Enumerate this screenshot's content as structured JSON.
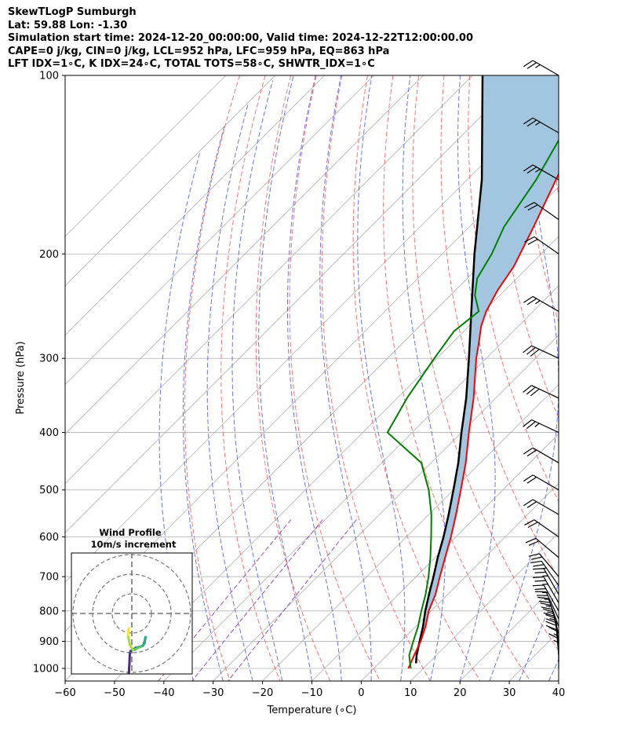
{
  "header": {
    "line1": "SkewTLogP Sumburgh",
    "line2": "Lat: 59.88   Lon: -1.30",
    "line3": "Simulation start time: 2024-12-20_00:00:00, Valid time: 2024-12-22T12:00:00.00",
    "line4": "CAPE=0 j/kg, CIN=0 j/kg, LCL=952 hPa, LFC=959 hPa, EQ=863 hPa",
    "line5": "LFT IDX=1∘C, K IDX=24∘C, TOTAL TOTS=58∘C, SHWTR_IDX=1∘C"
  },
  "chart_data": {
    "type": "line",
    "title": "SkewTLogP Sumburgh",
    "xlabel": "Temperature (∘C)",
    "ylabel": "Pressure (hPa)",
    "xlim": [
      -60,
      40
    ],
    "ylim": [
      1050,
      100
    ],
    "y_scale": "log",
    "x_ticks": [
      "−60",
      "−50",
      "−40",
      "−30",
      "−20",
      "−10",
      "0",
      "10",
      "20",
      "30",
      "40"
    ],
    "y_ticks": [
      "100",
      "200",
      "300",
      "400",
      "500",
      "600",
      "700",
      "800",
      "900",
      "1000"
    ],
    "grid": true,
    "colors": {
      "temperature": "#ff0000",
      "dewpoint": "#008000",
      "parcel": "#000000",
      "cape_fill": "#a2c6e0",
      "dry_adiabats": "#ff5a5a",
      "moist_adiabats": "#4b5cf0",
      "mixing_ratio": "#9b4fc0",
      "isotherms": "#b0b0b0"
    },
    "series": [
      {
        "name": "temperature",
        "pressure": [
          1000,
          950,
          900,
          850,
          800,
          750,
          700,
          650,
          600,
          550,
          500,
          450,
          400,
          350,
          300,
          280,
          265,
          250,
          230,
          210,
          180,
          150,
          120,
          100
        ],
        "values": [
          7.0,
          5.5,
          4.0,
          2.0,
          -0.5,
          -2.5,
          -5.2,
          -8.0,
          -11.0,
          -14.5,
          -18.5,
          -23.0,
          -28.5,
          -34.5,
          -42.0,
          -45.0,
          -47.5,
          -49.5,
          -51.5,
          -53.0,
          -57.0,
          -62.0,
          -68.0,
          -74.0
        ]
      },
      {
        "name": "dewpoint",
        "pressure": [
          1000,
          975,
          950,
          900,
          850,
          800,
          750,
          700,
          650,
          600,
          550,
          500,
          450,
          400,
          350,
          300,
          270,
          250,
          235,
          220,
          200,
          180,
          150,
          120,
          100
        ],
        "values": [
          7.5,
          6.0,
          4.5,
          2.5,
          0.5,
          -2.0,
          -4.5,
          -7.5,
          -11.0,
          -15.0,
          -19.5,
          -25.0,
          -32.0,
          -45.0,
          -48.0,
          -50.5,
          -52.0,
          -51.0,
          -55.0,
          -58.0,
          -60.0,
          -63.0,
          -66.0,
          -71.0,
          -76.0
        ]
      },
      {
        "name": "parcel",
        "pressure": [
          980,
          950,
          900,
          850,
          800,
          750,
          700,
          650,
          600,
          550,
          500,
          450,
          400,
          350,
          300,
          250,
          200,
          150,
          100
        ],
        "values": [
          7.5,
          6.0,
          3.8,
          1.5,
          -1.2,
          -3.8,
          -6.5,
          -9.5,
          -12.5,
          -16.0,
          -20.0,
          -24.5,
          -30.0,
          -36.0,
          -43.5,
          -52.5,
          -63.5,
          -77.0,
          -98.0
        ]
      }
    ],
    "wind_barbs": {
      "pressure": [
        1000,
        975,
        950,
        925,
        900,
        875,
        850,
        825,
        800,
        775,
        750,
        725,
        700,
        650,
        600,
        550,
        500,
        450,
        400,
        350,
        300,
        250,
        200,
        175,
        150,
        125,
        100
      ],
      "speed_kt": [
        15,
        15,
        20,
        20,
        25,
        25,
        25,
        25,
        25,
        25,
        25,
        25,
        20,
        20,
        20,
        20,
        20,
        20,
        25,
        30,
        30,
        25,
        20,
        20,
        25,
        25,
        25
      ],
      "direction_deg": [
        180,
        180,
        185,
        185,
        190,
        195,
        200,
        205,
        210,
        210,
        210,
        215,
        220,
        230,
        235,
        240,
        240,
        240,
        245,
        245,
        245,
        240,
        235,
        235,
        240,
        240,
        240
      ]
    },
    "inset": {
      "title_line1": "Wind Profile",
      "title_line2": "10m/s increment",
      "ring_increment_ms": 10,
      "hodograph_u": [
        -2.2,
        -2.0,
        -1.8,
        -1.5,
        -1.2,
        -1.0,
        -0.5,
        0.5,
        2.0,
        4.0,
        5.5,
        6.5,
        7.0,
        6.0,
        4.5,
        3.0,
        1.5,
        0.5,
        -1.0,
        -2.0,
        -1.8,
        -1.5
      ],
      "hodograph_v": [
        -45.0,
        -40.0,
        -35.0,
        -30.0,
        -25.0,
        -20.0,
        -19.0,
        -18.5,
        -17.5,
        -17.0,
        -16.5,
        -15.0,
        -12.0,
        -16.0,
        -17.0,
        -17.5,
        -18.5,
        -18.5,
        -16.0,
        -11.0,
        -9.0,
        -7.5
      ]
    }
  }
}
